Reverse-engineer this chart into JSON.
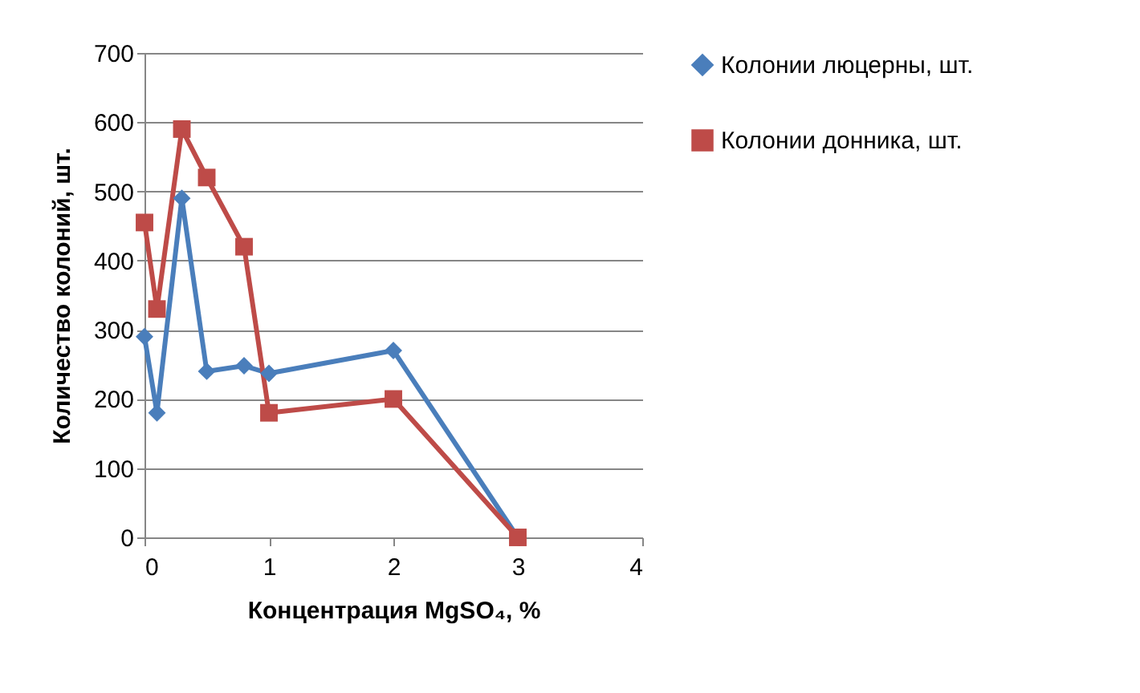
{
  "chart_data": {
    "type": "line",
    "xlabel": "Концентрация MgSO₄, %",
    "ylabel": "Количество колоний, шт.",
    "xlim": [
      0,
      4
    ],
    "xticks": [
      0,
      1,
      2,
      3,
      4
    ],
    "ylim": [
      0,
      700
    ],
    "yticks": [
      0,
      100,
      200,
      300,
      400,
      500,
      600,
      700
    ],
    "grid": "y",
    "legend": "right",
    "series": [
      {
        "name": "Колонии люцерны, шт.",
        "color": "#4a7ebb",
        "marker": "diamond",
        "x": [
          0,
          0.1,
          0.3,
          0.5,
          0.8,
          1,
          2,
          3
        ],
        "values": [
          290,
          180,
          490,
          240,
          248,
          237,
          270,
          0
        ]
      },
      {
        "name": "Колонии донника, шт.",
        "color": "#be4b48",
        "marker": "square",
        "x": [
          0,
          0.1,
          0.3,
          0.5,
          0.8,
          1,
          2,
          3
        ],
        "values": [
          455,
          330,
          590,
          520,
          420,
          180,
          200,
          0
        ]
      }
    ]
  }
}
